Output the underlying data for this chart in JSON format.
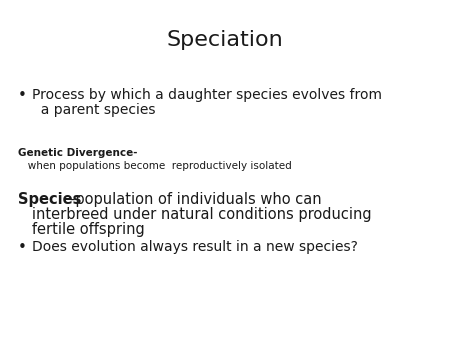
{
  "title": "Speciation",
  "title_fontsize": 16,
  "background_color": "#ffffff",
  "text_color": "#1a1a1a",
  "bullet_char": "•",
  "bullet1_line1": "Process by which a daughter species evolves from",
  "bullet1_line2": "  a parent species",
  "bullet1_fontsize": 10,
  "genetic_label": "Genetic Divergence-",
  "genetic_def": "   when populations become  reproductively isolated",
  "genetic_fontsize": 7.5,
  "species_bold": "Species",
  "species_rest_line1": "-population of individuals who can",
  "species_rest_line2": "   interbreed under natural conditions producing",
  "species_rest_line3": "   fertile offspring",
  "species_fontsize": 10.5,
  "bullet2": "Does evolution always result in a new species?",
  "bullet2_fontsize": 10
}
